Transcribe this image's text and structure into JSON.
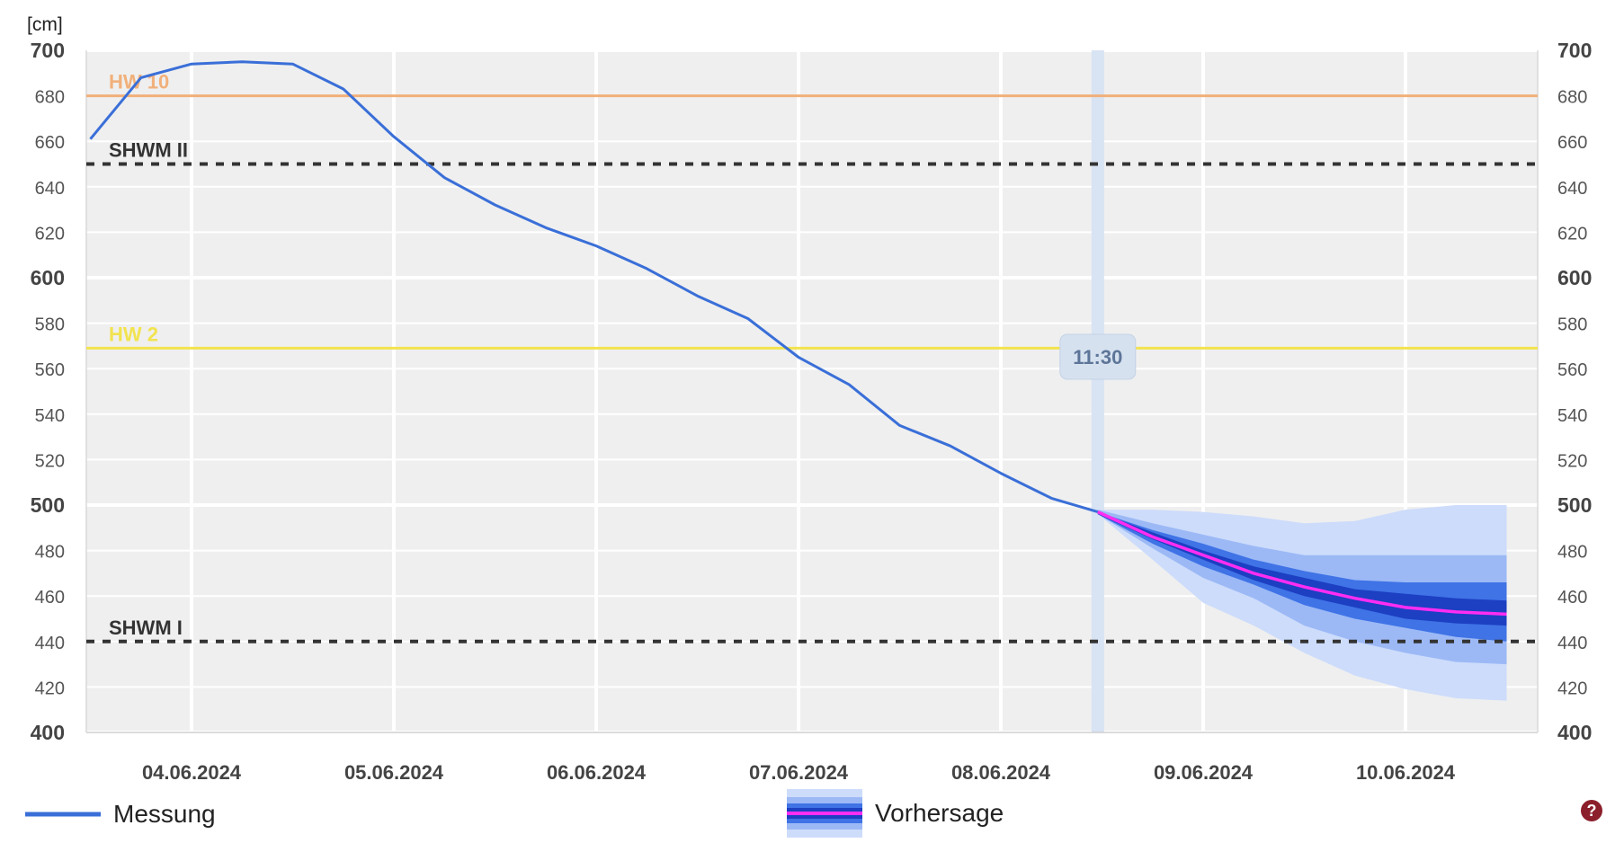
{
  "unit_label": "[cm]",
  "legend": {
    "measurement": "Messung",
    "forecast": "Vorhersage"
  },
  "help_symbol": "?",
  "colors": {
    "measurement": "#3a6fd8",
    "forecast_median": "#ff2df2",
    "forecast_band_outer": "#cddcfb",
    "forecast_band_mid": "#9cb9f6",
    "forecast_band_inner": "#3f73e6",
    "forecast_band_core": "#1d3fc2",
    "hw10": "#f1b07a",
    "hw2": "#f2e34e",
    "shwm": "#333333",
    "plot_bg": "#efefef",
    "now_marker": "#d8e3f3"
  },
  "chart_data": {
    "type": "line",
    "xlabel": "",
    "ylabel": "[cm]",
    "ylim": [
      400,
      700
    ],
    "y_ticks": [
      400,
      420,
      440,
      460,
      480,
      500,
      520,
      540,
      560,
      580,
      600,
      620,
      640,
      660,
      680,
      700
    ],
    "x_ticks": [
      "04.06.2024",
      "05.06.2024",
      "06.06.2024",
      "07.06.2024",
      "08.06.2024",
      "09.06.2024",
      "10.06.2024"
    ],
    "grid": true,
    "now_label": "11:30",
    "now_x": "08.06.2024 11:30",
    "thresholds": [
      {
        "name": "HW 10",
        "value": 680,
        "style": "solid",
        "color": "#f1b07a"
      },
      {
        "name": "SHWM II",
        "value": 650,
        "style": "dashed",
        "color": "#333333"
      },
      {
        "name": "HW 2",
        "value": 569,
        "style": "solid",
        "color": "#f2e34e"
      },
      {
        "name": "SHWM I",
        "value": 440,
        "style": "dashed",
        "color": "#333333"
      }
    ],
    "series": [
      {
        "name": "Messung",
        "x": [
          "03.06.2024 12:00",
          "03.06.2024 18:00",
          "04.06.2024 00:00",
          "04.06.2024 06:00",
          "04.06.2024 12:00",
          "04.06.2024 18:00",
          "05.06.2024 00:00",
          "05.06.2024 06:00",
          "05.06.2024 12:00",
          "05.06.2024 18:00",
          "06.06.2024 00:00",
          "06.06.2024 06:00",
          "06.06.2024 12:00",
          "06.06.2024 18:00",
          "07.06.2024 00:00",
          "07.06.2024 06:00",
          "07.06.2024 12:00",
          "07.06.2024 18:00",
          "08.06.2024 00:00",
          "08.06.2024 06:00",
          "08.06.2024 11:30"
        ],
        "values": [
          661,
          688,
          694,
          695,
          694,
          683,
          662,
          644,
          632,
          622,
          614,
          604,
          592,
          582,
          565,
          553,
          535,
          526,
          514,
          503,
          497
        ]
      },
      {
        "name": "Vorhersage",
        "x": [
          "08.06.2024 11:30",
          "08.06.2024 18:00",
          "09.06.2024 00:00",
          "09.06.2024 06:00",
          "09.06.2024 12:00",
          "09.06.2024 18:00",
          "10.06.2024 00:00",
          "10.06.2024 06:00",
          "10.06.2024 12:00"
        ],
        "values": [
          497,
          486,
          478,
          470,
          464,
          459,
          455,
          453,
          452
        ],
        "band_outer_upper": [
          498,
          498,
          497,
          495,
          492,
          493,
          498,
          500,
          500
        ],
        "band_outer_lower": [
          496,
          476,
          457,
          447,
          435,
          425,
          419,
          415,
          414
        ],
        "band_mid_upper": [
          498,
          492,
          487,
          482,
          478,
          478,
          478,
          478,
          478
        ],
        "band_mid_lower": [
          496,
          481,
          468,
          459,
          447,
          440,
          435,
          431,
          430
        ],
        "band_inner_upper": [
          497,
          489,
          483,
          476,
          471,
          467,
          466,
          466,
          466
        ],
        "band_inner_lower": [
          496,
          483,
          473,
          465,
          456,
          450,
          446,
          442,
          440
        ],
        "band_core_upper": [
          497,
          488,
          480,
          473,
          468,
          463,
          461,
          459,
          458
        ],
        "band_core_lower": [
          496,
          485,
          476,
          467,
          460,
          455,
          450,
          448,
          447
        ]
      }
    ]
  }
}
